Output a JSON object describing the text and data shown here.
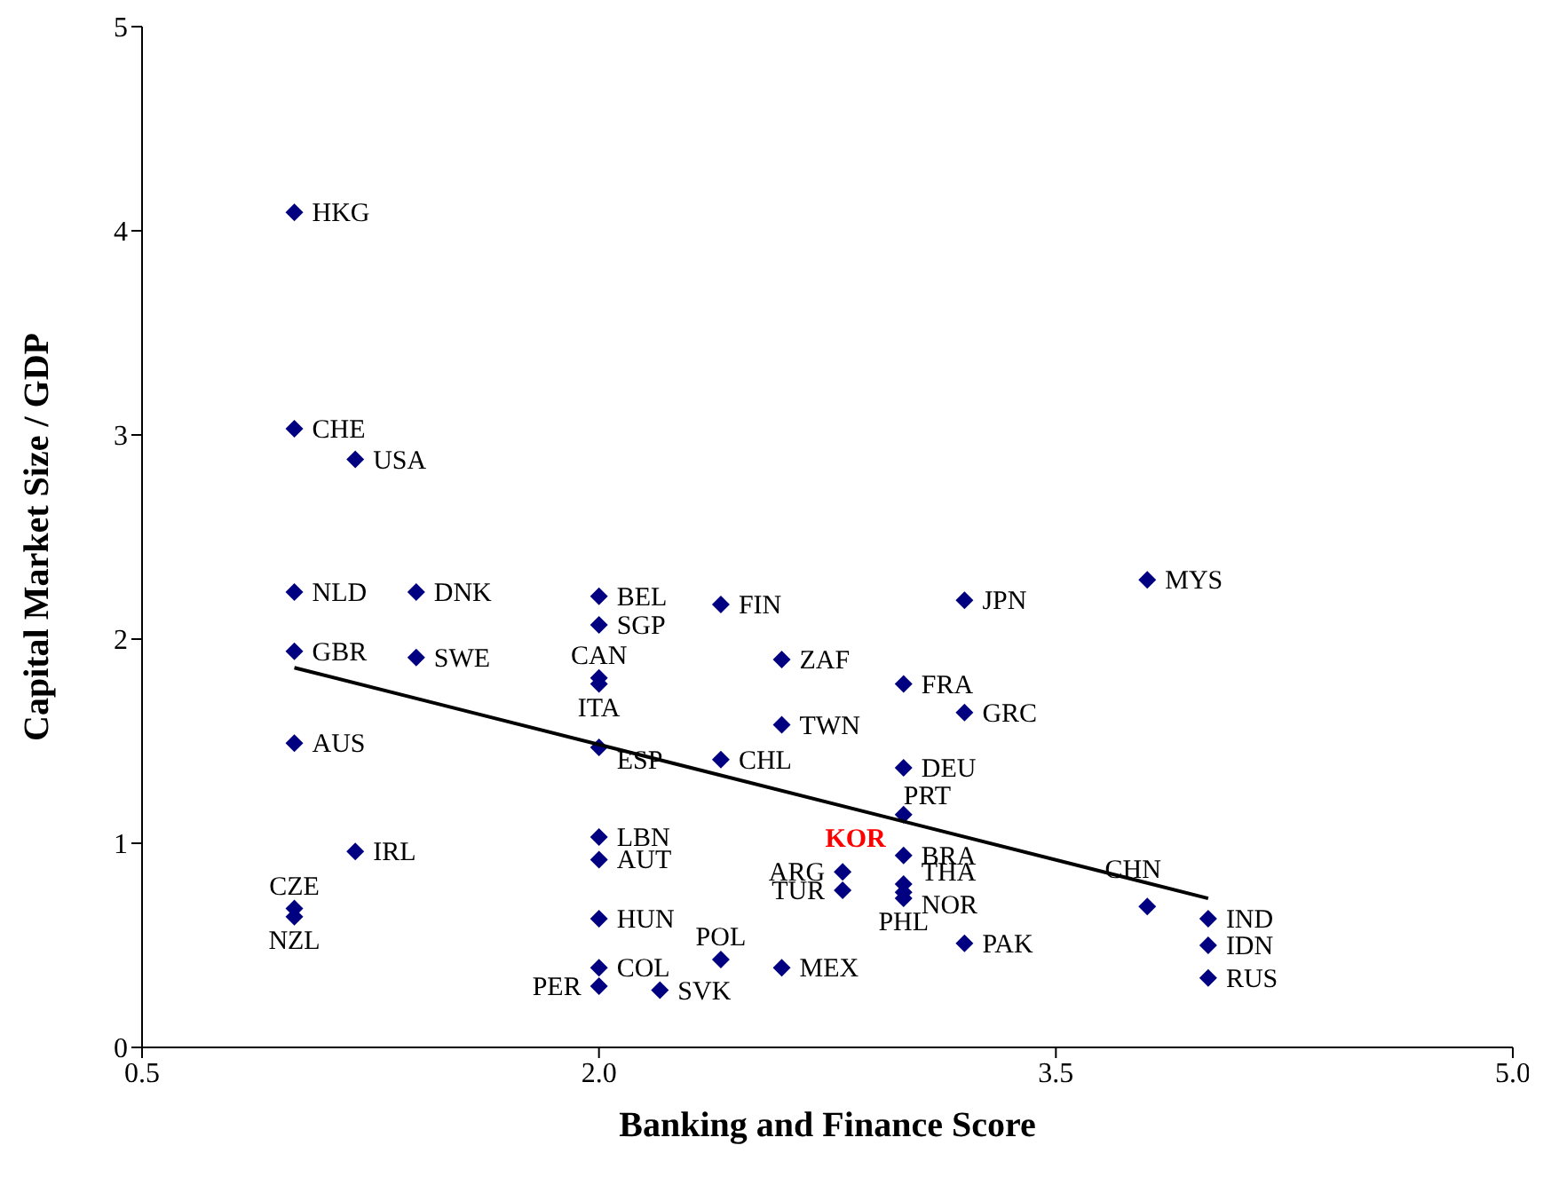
{
  "chart_data": {
    "type": "scatter",
    "xlabel": "Banking and Finance Score",
    "ylabel": "Capital Market Size / GDP",
    "xlim": [
      0.5,
      5.0
    ],
    "xticks": [
      0.5,
      {
        "value": 2,
        "label": "2.0"
      },
      3.5,
      {
        "value": 5,
        "label": "5.0"
      }
    ],
    "ylim": [
      0,
      5
    ],
    "yticks": [
      0,
      1,
      2,
      3,
      4,
      5
    ],
    "grid": false,
    "legend": false,
    "marker": "diamond",
    "series": [
      {
        "type": "scatter",
        "color": "#000080",
        "x": [
          1.0,
          1.0,
          1.2,
          1.0,
          1.4,
          2.0,
          2.0,
          2.4,
          3.2,
          3.8,
          1.0,
          1.4,
          2.0,
          2.0,
          2.6,
          3.0,
          3.2,
          1.0,
          2.0,
          2.6,
          2.4,
          3.0,
          3.0,
          null,
          2.0,
          2.0,
          1.2,
          3.0,
          2.8,
          2.8,
          3.0,
          3.0,
          3.0,
          1.0,
          1.0,
          3.8,
          4.0,
          4.0,
          4.0,
          3.2,
          2.0,
          2.4,
          2.0,
          2.6,
          2.0,
          2.2
        ],
        "values": [
          4.09,
          3.03,
          2.88,
          2.23,
          2.23,
          2.21,
          2.07,
          2.17,
          2.19,
          2.29,
          1.94,
          1.91,
          1.81,
          1.78,
          1.9,
          1.78,
          1.64,
          1.49,
          1.47,
          1.58,
          1.41,
          1.37,
          1.14,
          null,
          1.03,
          0.92,
          0.96,
          0.94,
          0.86,
          0.77,
          0.8,
          0.76,
          0.73,
          0.68,
          0.64,
          0.69,
          0.63,
          0.5,
          0.34,
          0.51,
          0.63,
          0.43,
          0.39,
          0.39,
          0.3,
          0.28
        ]
      },
      {
        "type": "line",
        "color": "#000000",
        "marker": "none",
        "x": [
          1.0,
          4.0
        ],
        "values": [
          1.86,
          0.73
        ]
      }
    ],
    "annotations": [
      {
        "text": "HKG",
        "x": 1.0,
        "y": 4.09
      },
      {
        "text": "CHE",
        "x": 1.0,
        "y": 3.03
      },
      {
        "text": "USA",
        "x": 1.2,
        "y": 2.88
      },
      {
        "text": "NLD",
        "x": 1.0,
        "y": 2.23
      },
      {
        "text": "DNK",
        "x": 1.4,
        "y": 2.23
      },
      {
        "text": "BEL",
        "x": 2.0,
        "y": 2.21
      },
      {
        "text": "SGP",
        "x": 2.0,
        "y": 2.07
      },
      {
        "text": "FIN",
        "x": 2.4,
        "y": 2.17
      },
      {
        "text": "JPN",
        "x": 3.2,
        "y": 2.19
      },
      {
        "text": "MYS",
        "x": 3.8,
        "y": 2.29
      },
      {
        "text": "GBR",
        "x": 1.0,
        "y": 1.94
      },
      {
        "text": "SWE",
        "x": 1.4,
        "y": 1.91
      },
      {
        "text": "CAN",
        "x": 2.0,
        "y": 1.81
      },
      {
        "text": "ITA",
        "x": 2.0,
        "y": 1.78
      },
      {
        "text": "ZAF",
        "x": 2.6,
        "y": 1.9
      },
      {
        "text": "FRA",
        "x": 3.0,
        "y": 1.78
      },
      {
        "text": "GRC",
        "x": 3.2,
        "y": 1.64
      },
      {
        "text": "AUS",
        "x": 1.0,
        "y": 1.49
      },
      {
        "text": "ESP",
        "x": 2.0,
        "y": 1.47
      },
      {
        "text": "TWN",
        "x": 2.6,
        "y": 1.58
      },
      {
        "text": "CHL",
        "x": 2.4,
        "y": 1.41
      },
      {
        "text": "DEU",
        "x": 3.0,
        "y": 1.37
      },
      {
        "text": "PRT",
        "x": 3.0,
        "y": 1.14
      },
      {
        "text": "KOR",
        "x": 3.0,
        "y": 1.12
      },
      {
        "text": "LBN",
        "x": 2.0,
        "y": 1.03
      },
      {
        "text": "AUT",
        "x": 2.0,
        "y": 0.92
      },
      {
        "text": "IRL",
        "x": 1.2,
        "y": 0.96
      },
      {
        "text": "BRA",
        "x": 3.0,
        "y": 0.94
      },
      {
        "text": "ARG",
        "x": 2.8,
        "y": 0.86
      },
      {
        "text": "TUR",
        "x": 2.8,
        "y": 0.77
      },
      {
        "text": "THA",
        "x": 3.0,
        "y": 0.8
      },
      {
        "text": "NOR",
        "x": 3.0,
        "y": 0.76
      },
      {
        "text": "PHL",
        "x": 3.0,
        "y": 0.73
      },
      {
        "text": "CZE",
        "x": 1.0,
        "y": 0.68
      },
      {
        "text": "NZL",
        "x": 1.0,
        "y": 0.64
      },
      {
        "text": "CHN",
        "x": 3.8,
        "y": 0.69
      },
      {
        "text": "IND",
        "x": 4.0,
        "y": 0.63
      },
      {
        "text": "IDN",
        "x": 4.0,
        "y": 0.5
      },
      {
        "text": "RUS",
        "x": 4.0,
        "y": 0.34
      },
      {
        "text": "PAK",
        "x": 3.2,
        "y": 0.51
      },
      {
        "text": "HUN",
        "x": 2.0,
        "y": 0.63
      },
      {
        "text": "POL",
        "x": 2.4,
        "y": 0.43
      },
      {
        "text": "COL",
        "x": 2.0,
        "y": 0.39
      },
      {
        "text": "MEX",
        "x": 2.6,
        "y": 0.39
      },
      {
        "text": "PER",
        "x": 2.0,
        "y": 0.3
      },
      {
        "text": "SVK",
        "x": 2.2,
        "y": 0.28
      }
    ]
  }
}
